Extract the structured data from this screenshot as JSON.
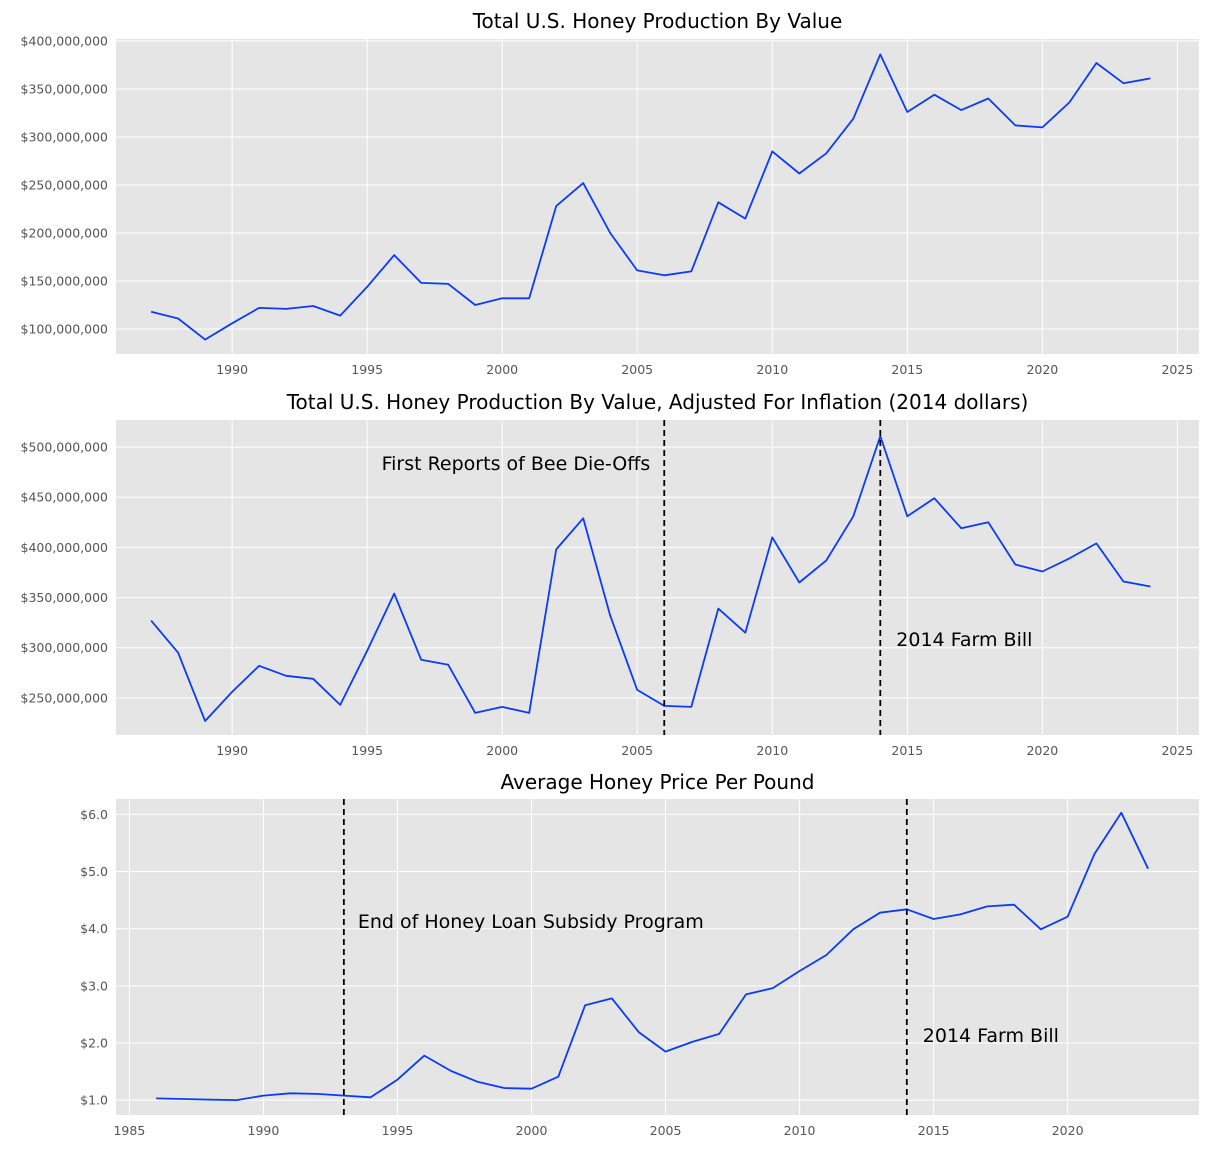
{
  "chart_data": [
    {
      "type": "line",
      "title": "Total U.S. Honey Production By Value",
      "xlabel": "",
      "ylabel": "",
      "xlim": [
        1985.7,
        2025.8
      ],
      "ylim": [
        74000000,
        402000000
      ],
      "xticks": [
        1990,
        1995,
        2000,
        2005,
        2010,
        2015,
        2020,
        2025
      ],
      "xtick_labels": [
        "1990",
        "1995",
        "2000",
        "2005",
        "2010",
        "2015",
        "2020",
        "2025"
      ],
      "yticks": [
        100000000,
        150000000,
        200000000,
        250000000,
        300000000,
        350000000,
        400000000
      ],
      "ytick_labels": [
        "$100,000,000",
        "$150,000,000",
        "$200,000,000",
        "$250,000,000",
        "$300,000,000",
        "$350,000,000",
        "$400,000,000"
      ],
      "grid": true,
      "color": "#0a3cf5",
      "x": [
        1987,
        1988,
        1989,
        1990,
        1991,
        1992,
        1993,
        1994,
        1995,
        1996,
        1997,
        1998,
        1999,
        2000,
        2001,
        2002,
        2003,
        2004,
        2005,
        2006,
        2007,
        2008,
        2009,
        2010,
        2011,
        2012,
        2013,
        2014,
        2015,
        2016,
        2017,
        2018,
        2019,
        2020,
        2021,
        2022,
        2023,
        2024
      ],
      "y": [
        118000000,
        111000000,
        89000000,
        106000000,
        122000000,
        121000000,
        124000000,
        114000000,
        144000000,
        177000000,
        148000000,
        147000000,
        125000000,
        132000000,
        132000000,
        228000000,
        252000000,
        200000000,
        161000000,
        156000000,
        160000000,
        232000000,
        215000000,
        285000000,
        262000000,
        283000000,
        319000000,
        386000000,
        326000000,
        344000000,
        328000000,
        340000000,
        312000000,
        310000000,
        336000000,
        377000000,
        356000000,
        361000000
      ],
      "annotations": []
    },
    {
      "type": "line",
      "title": "Total U.S. Honey Production By Value, Adjusted For Inflation (2014 dollars)",
      "xlabel": "",
      "ylabel": "",
      "xlim": [
        1985.7,
        2025.8
      ],
      "ylim": [
        213000000,
        527000000
      ],
      "xticks": [
        1990,
        1995,
        2000,
        2005,
        2010,
        2015,
        2020,
        2025
      ],
      "xtick_labels": [
        "1990",
        "1995",
        "2000",
        "2005",
        "2010",
        "2015",
        "2020",
        "2025"
      ],
      "yticks": [
        250000000,
        300000000,
        350000000,
        400000000,
        450000000,
        500000000
      ],
      "ytick_labels": [
        "$250,000,000",
        "$300,000,000",
        "$350,000,000",
        "$400,000,000",
        "$450,000,000",
        "$500,000,000"
      ],
      "grid": true,
      "color": "#0a3cf5",
      "x": [
        1987,
        1988,
        1989,
        1990,
        1991,
        1992,
        1993,
        1994,
        1995,
        1996,
        1997,
        1998,
        1999,
        2000,
        2001,
        2002,
        2003,
        2004,
        2005,
        2006,
        2007,
        2008,
        2009,
        2010,
        2011,
        2012,
        2013,
        2014,
        2015,
        2016,
        2017,
        2018,
        2019,
        2020,
        2021,
        2022,
        2023,
        2024
      ],
      "y": [
        327000000,
        295000000,
        227000000,
        256000000,
        282000000,
        272000000,
        269000000,
        243000000,
        297000000,
        354000000,
        288000000,
        283000000,
        235000000,
        241000000,
        235000000,
        398000000,
        429000000,
        332000000,
        258000000,
        242000000,
        241000000,
        339000000,
        315000000,
        410000000,
        365000000,
        387000000,
        431000000,
        511000000,
        431000000,
        449000000,
        419000000,
        425000000,
        383000000,
        376000000,
        389000000,
        404000000,
        366000000,
        361000000
      ],
      "annotations": [
        {
          "x": 2006,
          "label": "First Reports of Bee Die-Offs"
        },
        {
          "x": 2014,
          "label": "2014 Farm Bill"
        }
      ]
    },
    {
      "type": "line",
      "title": "Average Honey Price Per Pound",
      "xlabel": "",
      "ylabel": "",
      "xlim": [
        1984.5,
        2024.9
      ],
      "ylim": [
        0.74,
        6.27
      ],
      "xticks": [
        1985,
        1990,
        1995,
        2000,
        2005,
        2010,
        2015,
        2020
      ],
      "xtick_labels": [
        "1985",
        "1990",
        "1995",
        "2000",
        "2005",
        "2010",
        "2015",
        "2020"
      ],
      "yticks": [
        1.0,
        2.0,
        3.0,
        4.0,
        5.0,
        6.0
      ],
      "ytick_labels": [
        "$1.0",
        "$2.0",
        "$3.0",
        "$4.0",
        "$5.0",
        "$6.0"
      ],
      "grid": true,
      "color": "#0a3cf5",
      "x": [
        1986,
        1987,
        1988,
        1989,
        1990,
        1991,
        1992,
        1993,
        1994,
        1995,
        1996,
        1997,
        1998,
        1999,
        2000,
        2001,
        2002,
        2003,
        2004,
        2005,
        2006,
        2007,
        2008,
        2009,
        2010,
        2011,
        2012,
        2013,
        2014,
        2015,
        2016,
        2017,
        2018,
        2019,
        2020,
        2021,
        2022,
        2023
      ],
      "y": [
        1.03,
        1.02,
        1.01,
        1.0,
        1.08,
        1.12,
        1.11,
        1.08,
        1.05,
        1.36,
        1.78,
        1.51,
        1.32,
        1.21,
        1.2,
        1.41,
        2.66,
        2.78,
        2.19,
        1.85,
        2.02,
        2.16,
        2.85,
        2.96,
        3.26,
        3.54,
        3.99,
        4.28,
        4.34,
        4.17,
        4.25,
        4.39,
        4.42,
        3.99,
        4.21,
        5.31,
        6.03,
        5.05
      ],
      "annotations": [
        {
          "x": 1993,
          "label": "End of Honey Loan Subsidy Program"
        },
        {
          "x": 2014,
          "label": "2014 Farm Bill"
        }
      ]
    }
  ]
}
